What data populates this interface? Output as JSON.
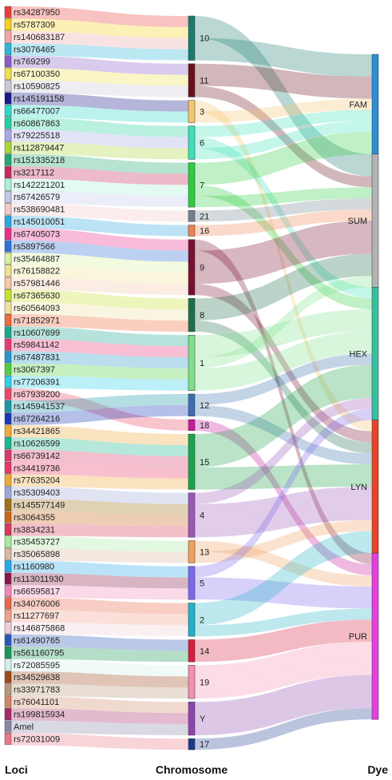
{
  "chart_data": {
    "type": "sankey",
    "axis_labels": {
      "loci": "Loci",
      "chromosome": "Chromosome",
      "dye": "Dye"
    },
    "dyes": [
      {
        "name": "FAM",
        "color": "#2d8ed6"
      },
      {
        "name": "SUM",
        "color": "#b3b3b3"
      },
      {
        "name": "HEX",
        "color": "#37c0a0"
      },
      {
        "name": "LYN",
        "color": "#e8442a"
      },
      {
        "name": "PUR",
        "color": "#e43fe0"
      }
    ],
    "chromosomes": [
      {
        "name": "10",
        "color": "#1a7a6e"
      },
      {
        "name": "11",
        "color": "#6b0f1a"
      },
      {
        "name": "3",
        "color": "#f6c56b"
      },
      {
        "name": "6",
        "color": "#3de0b8"
      },
      {
        "name": "7",
        "color": "#2ecc40"
      },
      {
        "name": "21",
        "color": "#708090"
      },
      {
        "name": "16",
        "color": "#f08050"
      },
      {
        "name": "9",
        "color": "#7a1030"
      },
      {
        "name": "8",
        "color": "#1f6e4a"
      },
      {
        "name": "1",
        "color": "#7ee08a"
      },
      {
        "name": "12",
        "color": "#3a6fb0"
      },
      {
        "name": "18",
        "color": "#c5179c"
      },
      {
        "name": "15",
        "color": "#1aa34a"
      },
      {
        "name": "4",
        "color": "#9b59b6"
      },
      {
        "name": "13",
        "color": "#f0a060"
      },
      {
        "name": "5",
        "color": "#7b68ee"
      },
      {
        "name": "2",
        "color": "#20b2c8"
      },
      {
        "name": "14",
        "color": "#d81b3c"
      },
      {
        "name": "19",
        "color": "#f48fb1"
      },
      {
        "name": "Y",
        "color": "#8e44ad"
      },
      {
        "name": "17",
        "color": "#1a3a8a"
      }
    ],
    "loci": [
      {
        "name": "rs34287950",
        "chr": "10",
        "dye": "SUM",
        "color": "#e8403c"
      },
      {
        "name": "rs5787309",
        "chr": "10",
        "dye": "SUM",
        "color": "#f5d020"
      },
      {
        "name": "rs140683187",
        "chr": "10",
        "dye": "FAM",
        "color": "#f4a4a4"
      },
      {
        "name": "rs3076465",
        "chr": "10",
        "dye": "FAM",
        "color": "#2bb8d8"
      },
      {
        "name": "rs769299",
        "chr": "11",
        "dye": "FAM",
        "color": "#8a5cc8"
      },
      {
        "name": "rs67100350",
        "chr": "11",
        "dye": "FAM",
        "color": "#f0e050"
      },
      {
        "name": "rs10590825",
        "chr": "11",
        "dye": "SUM",
        "color": "#c8c8d8"
      },
      {
        "name": "rs145191158",
        "chr": "3",
        "dye": "LYN",
        "color": "#1a1a8a"
      },
      {
        "name": "rs66477007",
        "chr": "3",
        "dye": "FAM",
        "color": "#30d8c8"
      },
      {
        "name": "rs60867863",
        "chr": "6",
        "dye": "FAM",
        "color": "#26d0a0"
      },
      {
        "name": "rs79225518",
        "chr": "6",
        "dye": "HEX",
        "color": "#a8a8e8"
      },
      {
        "name": "rs112879447",
        "chr": "6",
        "dye": "FAM",
        "color": "#a8d838"
      },
      {
        "name": "rs151335218",
        "chr": "7",
        "dye": "FAM",
        "color": "#20a870"
      },
      {
        "name": "rs3217112",
        "chr": "7",
        "dye": "FAM",
        "color": "#c8285c"
      },
      {
        "name": "rs142221201",
        "chr": "7",
        "dye": "HEX",
        "color": "#a8f0d8"
      },
      {
        "name": "rs67426579",
        "chr": "7",
        "dye": "SUM",
        "color": "#c0c8e8"
      },
      {
        "name": "rs538690481",
        "chr": "21",
        "dye": "SUM",
        "color": "#f4c8c8"
      },
      {
        "name": "rs145010051",
        "chr": "16",
        "dye": "SUM",
        "color": "#2aa8e0"
      },
      {
        "name": "rs67405073",
        "chr": "9",
        "dye": "PUR",
        "color": "#e8308c"
      },
      {
        "name": "rs5897566",
        "chr": "9",
        "dye": "SUM",
        "color": "#3070d8"
      },
      {
        "name": "rs35464887",
        "chr": "9",
        "dye": "SUM",
        "color": "#d8f0a0"
      },
      {
        "name": "rs76158822",
        "chr": "9",
        "dye": "SUM",
        "color": "#f0e090"
      },
      {
        "name": "rs57981446",
        "chr": "9",
        "dye": "LYN",
        "color": "#f4c8a8"
      },
      {
        "name": "rs67365630",
        "chr": "8",
        "dye": "SUM",
        "color": "#c8e030"
      },
      {
        "name": "rs60564093",
        "chr": "8",
        "dye": "SUM",
        "color": "#f0e0a0"
      },
      {
        "name": "rs71852971",
        "chr": "8",
        "dye": "LYN",
        "color": "#f06a3a"
      },
      {
        "name": "rs10607699",
        "chr": "1",
        "dye": "HEX",
        "color": "#18a890"
      },
      {
        "name": "rs59841142",
        "chr": "1",
        "dye": "HEX",
        "color": "#e83878"
      },
      {
        "name": "rs67487831",
        "chr": "1",
        "dye": "SUM",
        "color": "#2898c8"
      },
      {
        "name": "rs3067397",
        "chr": "1",
        "dye": "HEX",
        "color": "#50d040"
      },
      {
        "name": "rs77206391",
        "chr": "1",
        "dye": "HEX",
        "color": "#30d0e8"
      },
      {
        "name": "rs67939200",
        "chr": "18",
        "dye": "PUR",
        "color": "#e84868"
      },
      {
        "name": "rs145941537",
        "chr": "12",
        "dye": "HEX",
        "color": "#1898a8"
      },
      {
        "name": "rs67264216",
        "chr": "12",
        "dye": "LYN",
        "color": "#1838b8"
      },
      {
        "name": "rs34421865",
        "chr": "15",
        "dye": "HEX",
        "color": "#f0a838"
      },
      {
        "name": "rs10626599",
        "chr": "15",
        "dye": "HEX",
        "color": "#18b890"
      },
      {
        "name": "rs66739142",
        "chr": "15",
        "dye": "HEX",
        "color": "#d83868"
      },
      {
        "name": "rs34419736",
        "chr": "15",
        "dye": "LYN",
        "color": "#e83868"
      },
      {
        "name": "rs77635204",
        "chr": "15",
        "dye": "LYN",
        "color": "#f0a838"
      },
      {
        "name": "rs35309403",
        "chr": "4",
        "dye": "HEX",
        "color": "#a0a8d8"
      },
      {
        "name": "rs145577149",
        "chr": "4",
        "dye": "LYN",
        "color": "#a07018"
      },
      {
        "name": "rs3064355",
        "chr": "4",
        "dye": "LYN",
        "color": "#c86818"
      },
      {
        "name": "rs3834231",
        "chr": "4",
        "dye": "LYN",
        "color": "#d83858"
      },
      {
        "name": "rs35453727",
        "chr": "13",
        "dye": "PUR",
        "color": "#a8e8a0"
      },
      {
        "name": "rs35065898",
        "chr": "13",
        "dye": "LYN",
        "color": "#d8b8a0"
      },
      {
        "name": "rs1160980",
        "chr": "5",
        "dye": "HEX",
        "color": "#28a8e8"
      },
      {
        "name": "rs113011930",
        "chr": "5",
        "dye": "PUR",
        "color": "#881848"
      },
      {
        "name": "rs66595817",
        "chr": "5",
        "dye": "PUR",
        "color": "#f088b8"
      },
      {
        "name": "rs34076006",
        "chr": "2",
        "dye": "LYN",
        "color": "#e86848"
      },
      {
        "name": "rs11277697",
        "chr": "2",
        "dye": "LYN",
        "color": "#f0a088"
      },
      {
        "name": "rs146875868",
        "chr": "2",
        "dye": "PUR",
        "color": "#f0d0d8"
      },
      {
        "name": "rs61490765",
        "chr": "14",
        "dye": "PUR",
        "color": "#2858b8"
      },
      {
        "name": "rs561160795",
        "chr": "14",
        "dye": "PUR",
        "color": "#189858"
      },
      {
        "name": "rs72085595",
        "chr": "19",
        "dye": "PUR",
        "color": "#d0f0e8"
      },
      {
        "name": "rs34529638",
        "chr": "19",
        "dye": "PUR",
        "color": "#a04818"
      },
      {
        "name": "rs33971783",
        "chr": "19",
        "dye": "PUR",
        "color": "#b89878"
      },
      {
        "name": "rs76041101",
        "chr": "Y",
        "dye": "PUR",
        "color": "#d08868"
      },
      {
        "name": "rs199815934",
        "chr": "Y",
        "dye": "PUR",
        "color": "#a82868"
      },
      {
        "name": "Amel",
        "chr": "Y",
        "dye": "PUR",
        "color": "#8888a8"
      },
      {
        "name": "rs72031009",
        "chr": "17",
        "dye": "PUR",
        "color": "#e87888"
      }
    ]
  }
}
